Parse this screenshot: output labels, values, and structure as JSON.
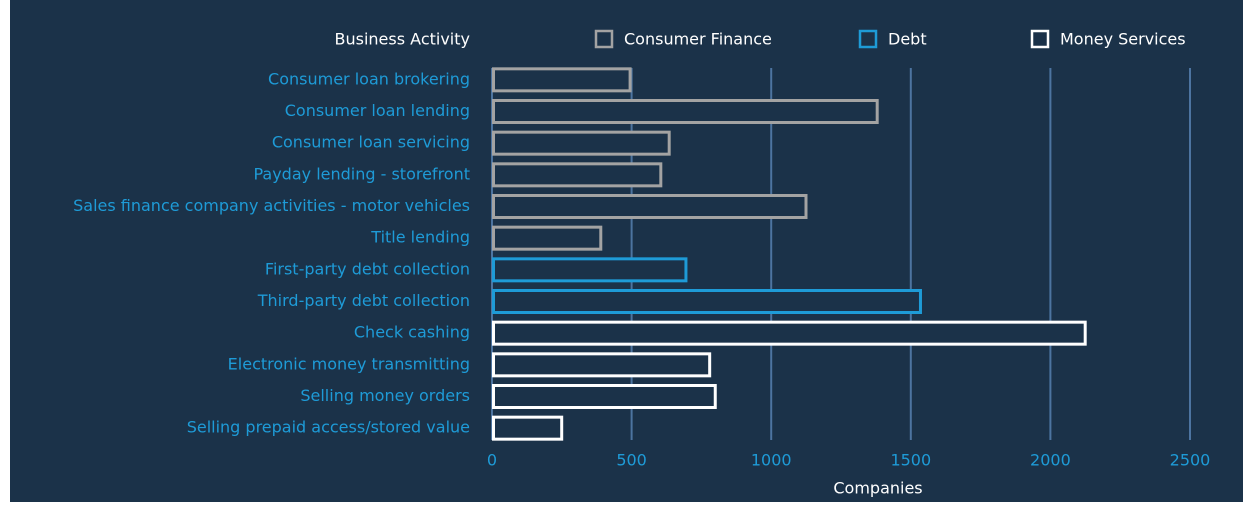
{
  "chart_data": {
    "type": "bar",
    "orientation": "horizontal",
    "legend_title": "Business Activity",
    "xlabel": "Companies",
    "categories": [
      "Consumer loan brokering",
      "Consumer loan lending",
      "Consumer loan servicing",
      "Payday lending - storefront",
      "Sales finance company activities - motor vehicles",
      "Title lending",
      "First-party debt collection",
      "Third-party debt collection",
      "Check cashing",
      "Electronic money transmitting",
      "Selling money orders",
      "Selling prepaid access/stored value"
    ],
    "series": [
      {
        "name": "Consumer Finance",
        "color": "#a3a3a3",
        "values": [
          500,
          1385,
          640,
          610,
          1130,
          395,
          null,
          null,
          null,
          null,
          null,
          null
        ]
      },
      {
        "name": "Debt",
        "color": "#1e9bd7",
        "values": [
          null,
          null,
          null,
          null,
          null,
          null,
          700,
          1540,
          null,
          null,
          null,
          null
        ]
      },
      {
        "name": "Money Services",
        "color": "#ffffff",
        "values": [
          null,
          null,
          null,
          null,
          null,
          null,
          null,
          null,
          2130,
          785,
          805,
          255
        ]
      }
    ],
    "xlim": [
      0,
      2500
    ],
    "xticks": [
      0,
      500,
      1000,
      1500,
      2000,
      2500
    ],
    "grid": true
  }
}
